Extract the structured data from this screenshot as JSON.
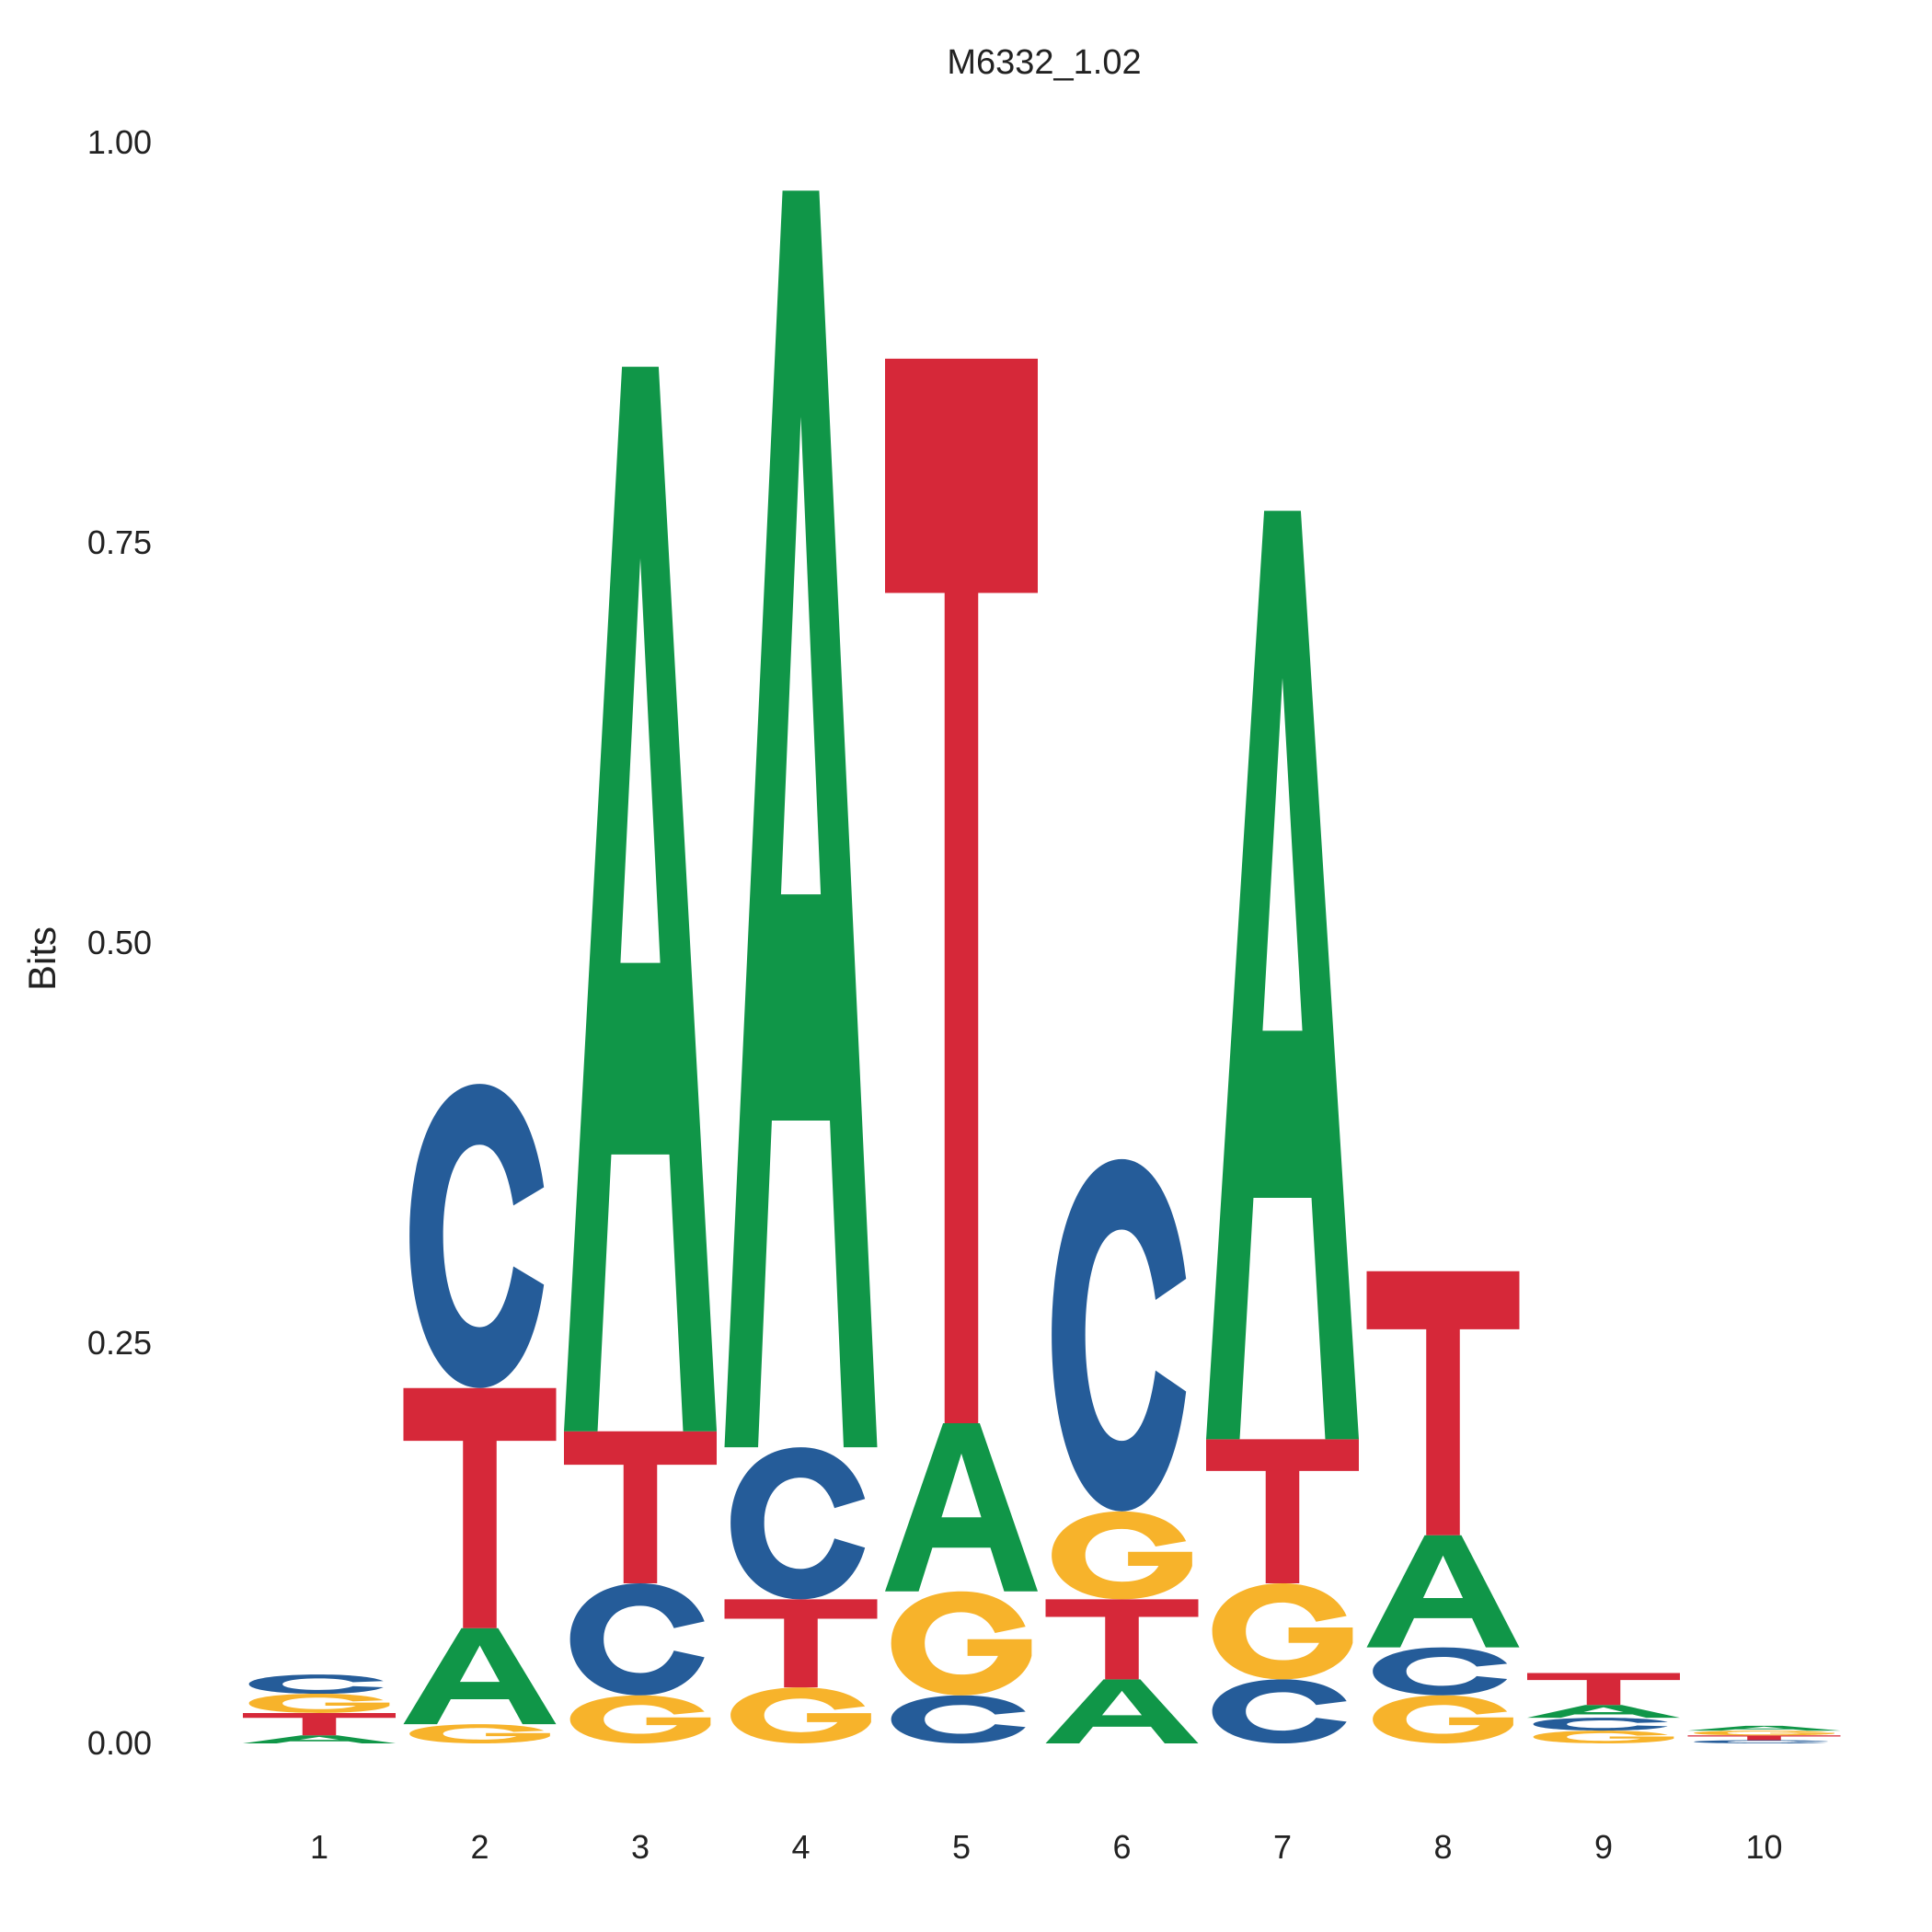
{
  "chart_data": {
    "type": "sequence-logo",
    "title": "M6332_1.02",
    "ylabel": "Bits",
    "xlabel": "",
    "ylim": [
      0,
      1.0
    ],
    "yticks": [
      "0.00",
      "0.25",
      "0.50",
      "0.75",
      "1.00"
    ],
    "ytick_values": [
      0,
      0.25,
      0.5,
      0.75,
      1.0
    ],
    "positions": [
      "1",
      "2",
      "3",
      "4",
      "5",
      "6",
      "7",
      "8",
      "9",
      "10"
    ],
    "colors": {
      "A": "#109648",
      "C": "#255C99",
      "G": "#F7B32B",
      "T": "#D62839"
    },
    "stacks": [
      [
        {
          "letter": "A",
          "bits": 0.005
        },
        {
          "letter": "T",
          "bits": 0.014
        },
        {
          "letter": "G",
          "bits": 0.012
        },
        {
          "letter": "C",
          "bits": 0.012
        }
      ],
      [
        {
          "letter": "G",
          "bits": 0.012
        },
        {
          "letter": "A",
          "bits": 0.06
        },
        {
          "letter": "T",
          "bits": 0.15
        },
        {
          "letter": "C",
          "bits": 0.19
        }
      ],
      [
        {
          "letter": "G",
          "bits": 0.03
        },
        {
          "letter": "C",
          "bits": 0.07
        },
        {
          "letter": "T",
          "bits": 0.095
        },
        {
          "letter": "A",
          "bits": 0.665
        }
      ],
      [
        {
          "letter": "G",
          "bits": 0.035
        },
        {
          "letter": "T",
          "bits": 0.055
        },
        {
          "letter": "C",
          "bits": 0.095
        },
        {
          "letter": "A",
          "bits": 0.785
        }
      ],
      [
        {
          "letter": "C",
          "bits": 0.03
        },
        {
          "letter": "G",
          "bits": 0.065
        },
        {
          "letter": "A",
          "bits": 0.105
        },
        {
          "letter": "T",
          "bits": 0.665
        }
      ],
      [
        {
          "letter": "A",
          "bits": 0.04
        },
        {
          "letter": "T",
          "bits": 0.05
        },
        {
          "letter": "G",
          "bits": 0.055
        },
        {
          "letter": "C",
          "bits": 0.22
        }
      ],
      [
        {
          "letter": "C",
          "bits": 0.04
        },
        {
          "letter": "G",
          "bits": 0.06
        },
        {
          "letter": "T",
          "bits": 0.09
        },
        {
          "letter": "A",
          "bits": 0.58
        }
      ],
      [
        {
          "letter": "G",
          "bits": 0.03
        },
        {
          "letter": "C",
          "bits": 0.03
        },
        {
          "letter": "A",
          "bits": 0.07
        },
        {
          "letter": "T",
          "bits": 0.165
        }
      ],
      [
        {
          "letter": "G",
          "bits": 0.008
        },
        {
          "letter": "C",
          "bits": 0.008
        },
        {
          "letter": "A",
          "bits": 0.008
        },
        {
          "letter": "T",
          "bits": 0.02
        }
      ],
      [
        {
          "letter": "C",
          "bits": 0.002
        },
        {
          "letter": "T",
          "bits": 0.003
        },
        {
          "letter": "G",
          "bits": 0.003
        },
        {
          "letter": "A",
          "bits": 0.003
        }
      ]
    ]
  }
}
